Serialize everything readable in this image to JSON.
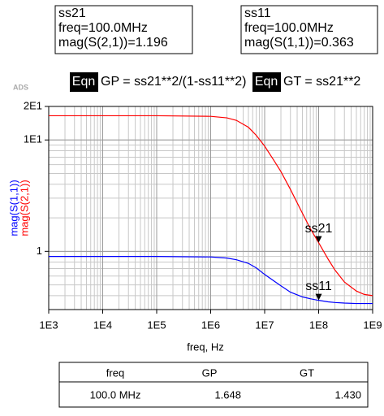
{
  "logo": "ADS",
  "chart_data": {
    "type": "line",
    "x": [
      1000,
      10000,
      100000,
      1000000,
      2000000,
      3000000,
      5000000,
      7000000,
      10000000,
      15000000,
      20000000,
      30000000,
      50000000,
      70000000,
      100000000,
      150000000,
      200000000,
      300000000,
      500000000,
      700000000,
      1000000000
    ],
    "series": [
      {
        "name": "mag(S(1,1))",
        "color": "#0000ff",
        "values": [
          0.9,
          0.9,
          0.9,
          0.89,
          0.87,
          0.84,
          0.78,
          0.71,
          0.62,
          0.54,
          0.49,
          0.43,
          0.39,
          0.375,
          0.363,
          0.352,
          0.347,
          0.343,
          0.34,
          0.34,
          0.34
        ]
      },
      {
        "name": "mag(S(2,1))",
        "color": "#ff0000",
        "values": [
          16.5,
          16.5,
          16.5,
          16.3,
          15.8,
          15,
          13,
          11,
          8.8,
          6.5,
          5.2,
          3.6,
          2.2,
          1.6,
          1.196,
          0.85,
          0.68,
          0.53,
          0.44,
          0.41,
          0.4
        ]
      }
    ],
    "x_label": "freq, Hz",
    "xlim": [
      1000,
      1000000000
    ],
    "ylim": [
      0.3,
      20
    ],
    "x_log": true,
    "y_log": true,
    "grid": true,
    "xticks": [
      {
        "value": 1000,
        "label": "1E3"
      },
      {
        "value": 10000,
        "label": "1E4"
      },
      {
        "value": 100000,
        "label": "1E5"
      },
      {
        "value": 1000000,
        "label": "1E6"
      },
      {
        "value": 10000000,
        "label": "1E7"
      },
      {
        "value": 100000000,
        "label": "1E8"
      },
      {
        "value": 1000000000,
        "label": "1E9"
      }
    ],
    "yticks": [
      {
        "value": 20,
        "label": "2E1"
      },
      {
        "value": 10,
        "label": "1E1"
      },
      1
    ],
    "markers": [
      {
        "name": "ss21",
        "readout": [
          "ss21",
          "freq=100.0MHz",
          "mag(S(2,1))=1.196"
        ],
        "x": 100000000,
        "y": 1.196
      },
      {
        "name": "ss11",
        "readout": [
          "ss11",
          "freq=100.0MHz",
          "mag(S(1,1))=0.363"
        ],
        "x": 100000000,
        "y": 0.363
      }
    ],
    "equations": [
      {
        "badge": "Eqn",
        "text": "GP = ss21**2/(1-ss11**2)"
      },
      {
        "badge": "Eqn",
        "text": "GT = ss21**2"
      }
    ]
  },
  "table": {
    "header": [
      "freq",
      "GP",
      "GT"
    ],
    "rows": [
      [
        "100.0 MHz",
        "1.648",
        "1.430"
      ]
    ]
  }
}
